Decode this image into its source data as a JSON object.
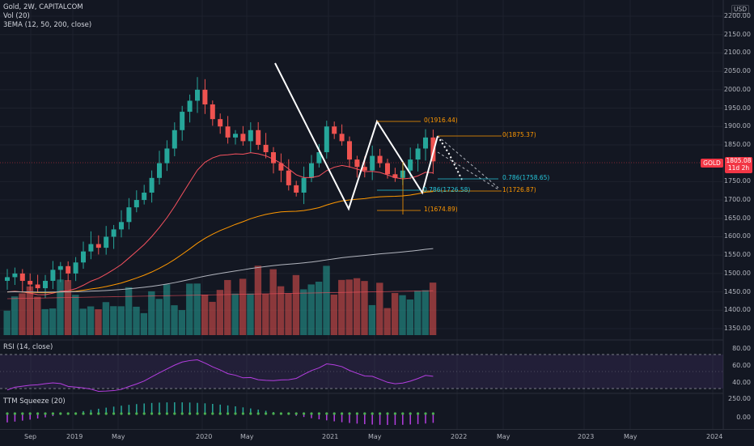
{
  "legend": {
    "symbol": "Gold, 2W, CAPITALCOM",
    "volume": "Vol (20)",
    "ema": "3EMA (12, 50, 200, close)"
  },
  "rsi_title": "RSI (14, close)",
  "ttm_title": "TTM Squeeze (20)",
  "currency": "USD",
  "symbol_tag": "GOLD",
  "last_price": "1805.08",
  "countdown": "11d 2h",
  "price_ticks": [
    "2200.00",
    "2150.00",
    "2100.00",
    "2050.00",
    "2000.00",
    "1950.00",
    "1900.00",
    "1850.00",
    "1750.00",
    "1700.00",
    "1650.00",
    "1600.00",
    "1550.00",
    "1500.00",
    "1450.00",
    "1400.00",
    "1350.00"
  ],
  "rsi_ticks": [
    "80.00",
    "60.00",
    "40.00"
  ],
  "ttm_ticks": [
    "250.00",
    "0.00"
  ],
  "time_ticks": [
    "Sep",
    "2019",
    "May",
    "2020",
    "May",
    "2021",
    "May",
    "2022",
    "May",
    "2023",
    "May",
    "2024"
  ],
  "fib_labels": {
    "top1": "0(1916.44)",
    "top2": "0(1875.37)",
    "mid_right": "0.786(1758.65)",
    "mid_left": "0.786(1726.58)",
    "one_right": "1(1726.87)",
    "one_left": "1(1674.89)"
  },
  "colors": {
    "up": "#26a69a",
    "down": "#ef5350",
    "ema12": "#f7525f",
    "ema50": "#ff9800",
    "ema200": "#b2b5be",
    "rsi": "#b43ee0",
    "fib": "#ff9800"
  },
  "chart_data": {
    "type": "candlestick",
    "title": "Gold, 2W, CAPITALCOM",
    "ylabel": "USD",
    "ylim": [
      1330,
      2215
    ],
    "approx_closes": [
      1490,
      1500,
      1480,
      1470,
      1460,
      1480,
      1510,
      1520,
      1500,
      1530,
      1560,
      1580,
      1570,
      1600,
      1620,
      1640,
      1680,
      1700,
      1720,
      1760,
      1800,
      1840,
      1890,
      1940,
      1970,
      2000,
      1960,
      1920,
      1900,
      1870,
      1880,
      1860,
      1890,
      1850,
      1830,
      1800,
      1780,
      1740,
      1720,
      1760,
      1800,
      1830,
      1900,
      1880,
      1860,
      1810,
      1790,
      1780,
      1820,
      1800,
      1770,
      1760,
      1780,
      1810,
      1840,
      1870,
      1805
    ],
    "last": 1805.08,
    "fib_levels": [
      {
        "label": "0",
        "value": 1916.44
      },
      {
        "label": "0",
        "value": 1875.37
      },
      {
        "label": "0.786",
        "value": 1758.65
      },
      {
        "label": "0.786",
        "value": 1726.58
      },
      {
        "label": "1",
        "value": 1726.87
      },
      {
        "label": "1",
        "value": 1674.89
      }
    ]
  }
}
